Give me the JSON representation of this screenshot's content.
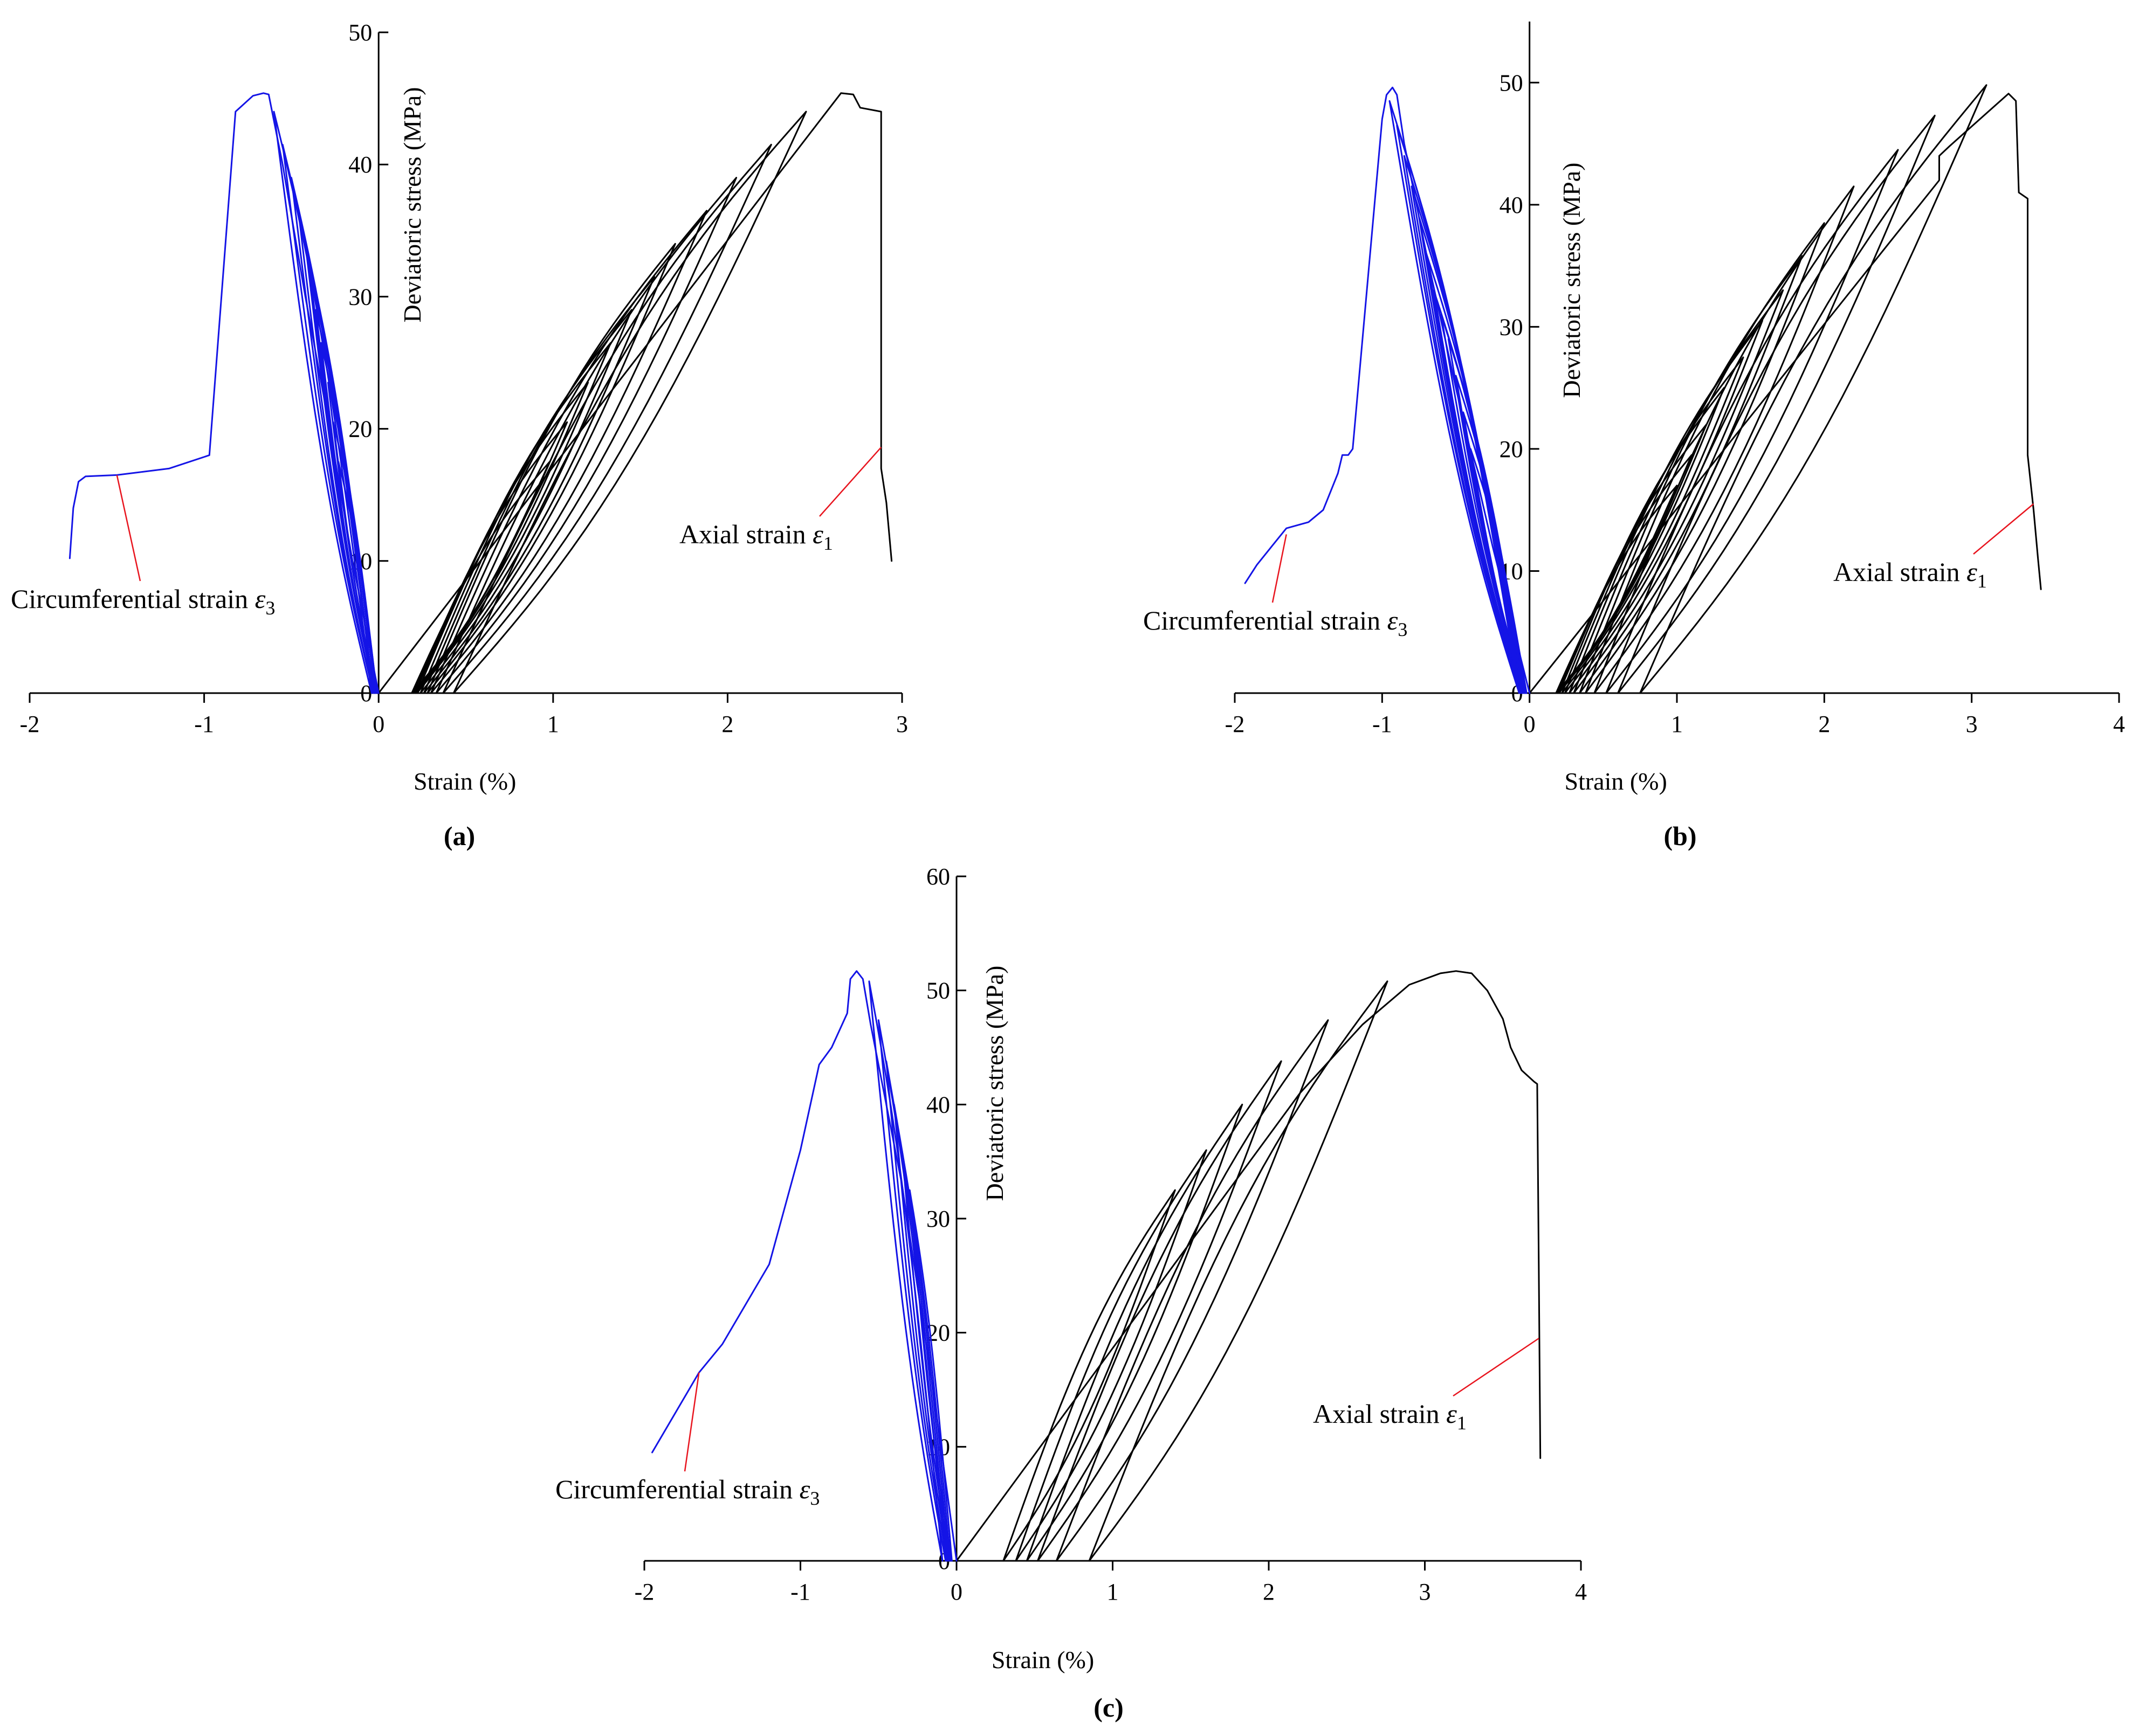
{
  "figure": {
    "panel_labels": [
      "(a)",
      "(b)",
      "(c)"
    ]
  },
  "colors": {
    "axial": "#000000",
    "circumferential": "#1414e6",
    "leader": "#e8141e",
    "axis": "#000000"
  },
  "chart_data": [
    {
      "type": "line",
      "panel": "(a)",
      "xlabel": "Strain (%)",
      "ylabel": "Deviatoric stress (MPa)",
      "xlim": [
        -2,
        3
      ],
      "ylim": [
        0,
        50
      ],
      "xticks": [
        -2,
        -1,
        0,
        1,
        2,
        3
      ],
      "yticks": [
        0,
        10,
        20,
        30,
        40,
        50
      ],
      "annotations": {
        "axial": {
          "text": "Axial strain ",
          "symbol": "ε",
          "sub": "1"
        },
        "circumferential": {
          "text": "Circumferential strain ",
          "symbol": "ε",
          "sub": "3"
        }
      },
      "leader_targets": {
        "axial": [
          2.88,
          18.6
        ],
        "circumferential": [
          -1.5,
          16.5
        ]
      },
      "series": [
        {
          "name": "Axial strain ε1",
          "color_key": "axial",
          "envelope": [
            [
              0,
              0
            ],
            [
              2.65,
              45.4
            ],
            [
              2.72,
              45.3
            ],
            [
              2.76,
              44.3
            ],
            [
              2.88,
              44.0
            ],
            [
              2.88,
              17.0
            ],
            [
              2.91,
              14.4
            ],
            [
              2.94,
              10.0
            ]
          ],
          "loops": [
            {
              "peak": [
                0.98,
                17.5
              ],
              "res": 0.19
            },
            {
              "peak": [
                1.08,
                20.5
              ],
              "res": 0.2
            },
            {
              "peak": [
                1.2,
                23.5
              ],
              "res": 0.21
            },
            {
              "peak": [
                1.33,
                26.5
              ],
              "res": 0.22
            },
            {
              "peak": [
                1.45,
                29.0
              ],
              "res": 0.24
            },
            {
              "peak": [
                1.58,
                31.5
              ],
              "res": 0.26
            },
            {
              "peak": [
                1.7,
                34.0
              ],
              "res": 0.28
            },
            {
              "peak": [
                1.88,
                36.5
              ],
              "res": 0.3
            },
            {
              "peak": [
                2.05,
                39.0
              ],
              "res": 0.33
            },
            {
              "peak": [
                2.25,
                41.5
              ],
              "res": 0.37
            },
            {
              "peak": [
                2.45,
                44.0
              ],
              "res": 0.43
            }
          ]
        },
        {
          "name": "Circumferential strain ε3",
          "color_key": "circumferential",
          "envelope": [
            [
              0,
              0
            ],
            [
              -0.15,
              10.0
            ],
            [
              -0.28,
              20.0
            ],
            [
              -0.42,
              30.0
            ],
            [
              -0.55,
              40.0
            ],
            [
              -0.63,
              45.3
            ],
            [
              -0.66,
              45.4
            ],
            [
              -0.72,
              45.2
            ],
            [
              -0.82,
              44.0
            ],
            [
              -0.97,
              18.0
            ],
            [
              -1.2,
              17.0
            ],
            [
              -1.5,
              16.5
            ],
            [
              -1.68,
              16.4
            ],
            [
              -1.72,
              16.0
            ],
            [
              -1.75,
              14.0
            ],
            [
              -1.77,
              10.2
            ]
          ],
          "loops": [
            {
              "peak": [
                -0.23,
                17.5
              ],
              "res": -0.01
            },
            {
              "peak": [
                -0.26,
                20.5
              ],
              "res": -0.01
            },
            {
              "peak": [
                -0.29,
                23.5
              ],
              "res": -0.01
            },
            {
              "peak": [
                -0.33,
                26.5
              ],
              "res": -0.02
            },
            {
              "peak": [
                -0.36,
                29.0
              ],
              "res": -0.02
            },
            {
              "peak": [
                -0.39,
                31.5
              ],
              "res": -0.02
            },
            {
              "peak": [
                -0.42,
                34.0
              ],
              "res": -0.02
            },
            {
              "peak": [
                -0.46,
                36.5
              ],
              "res": -0.03
            },
            {
              "peak": [
                -0.5,
                39.0
              ],
              "res": -0.03
            },
            {
              "peak": [
                -0.55,
                41.5
              ],
              "res": -0.03
            },
            {
              "peak": [
                -0.6,
                44.0
              ],
              "res": -0.04
            }
          ]
        }
      ]
    },
    {
      "type": "line",
      "panel": "(b)",
      "xlabel": "Strain (%)",
      "ylabel": "Deviatoric stress (MPa)",
      "xlim": [
        -2,
        4
      ],
      "ylim": [
        0,
        55
      ],
      "xticks": [
        -2,
        -1,
        0,
        1,
        2,
        3,
        4
      ],
      "yticks": [
        0,
        10,
        20,
        30,
        40,
        50
      ],
      "annotations": {
        "axial": {
          "text": "Axial strain ",
          "symbol": "ε",
          "sub": "1"
        },
        "circumferential": {
          "text": "Circumferential strain ",
          "symbol": "ε",
          "sub": "3"
        }
      },
      "leader_targets": {
        "axial": [
          3.42,
          15.5
        ],
        "circumferential": [
          -1.65,
          13.0
        ]
      },
      "series": [
        {
          "name": "Axial strain ε1",
          "color_key": "axial",
          "envelope": [
            [
              0,
              0
            ],
            [
              2.78,
              42.0
            ],
            [
              2.78,
              44.0
            ],
            [
              2.85,
              44.8
            ],
            [
              3.25,
              49.1
            ],
            [
              3.3,
              48.5
            ],
            [
              3.32,
              41.0
            ],
            [
              3.38,
              40.5
            ],
            [
              3.38,
              19.5
            ],
            [
              3.42,
              15.0
            ],
            [
              3.45,
              11.0
            ],
            [
              3.47,
              8.5
            ]
          ],
          "loops": [
            {
              "peak": [
                1.0,
                17.0
              ],
              "res": 0.18
            },
            {
              "peak": [
                1.1,
                19.5
              ],
              "res": 0.19
            },
            {
              "peak": [
                1.2,
                22.0
              ],
              "res": 0.2
            },
            {
              "peak": [
                1.32,
                25.0
              ],
              "res": 0.22
            },
            {
              "peak": [
                1.45,
                27.5
              ],
              "res": 0.24
            },
            {
              "peak": [
                1.58,
                30.5
              ],
              "res": 0.27
            },
            {
              "peak": [
                1.72,
                33.0
              ],
              "res": 0.3
            },
            {
              "peak": [
                1.85,
                35.8
              ],
              "res": 0.34
            },
            {
              "peak": [
                2.0,
                38.5
              ],
              "res": 0.38
            },
            {
              "peak": [
                2.2,
                41.5
              ],
              "res": 0.44
            },
            {
              "peak": [
                2.5,
                44.5
              ],
              "res": 0.52
            },
            {
              "peak": [
                2.75,
                47.3
              ],
              "res": 0.6
            },
            {
              "peak": [
                3.1,
                49.8
              ],
              "res": 0.75
            }
          ]
        },
        {
          "name": "Circumferential strain ε3",
          "color_key": "circumferential",
          "envelope": [
            [
              0,
              0
            ],
            [
              -0.25,
              12.0
            ],
            [
              -0.5,
              25.0
            ],
            [
              -0.7,
              36.0
            ],
            [
              -0.85,
              45.0
            ],
            [
              -0.9,
              49.0
            ],
            [
              -0.93,
              49.6
            ],
            [
              -0.97,
              49.0
            ],
            [
              -1.0,
              47.0
            ],
            [
              -1.2,
              20.0
            ],
            [
              -1.23,
              19.5
            ],
            [
              -1.27,
              19.5
            ],
            [
              -1.3,
              18.0
            ],
            [
              -1.4,
              15.0
            ],
            [
              -1.5,
              14.0
            ],
            [
              -1.65,
              13.5
            ],
            [
              -1.75,
              12.0
            ],
            [
              -1.85,
              10.5
            ],
            [
              -1.93,
              9.0
            ]
          ],
          "loops": [
            {
              "peak": [
                -0.4,
                20.0
              ],
              "res": -0.02
            },
            {
              "peak": [
                -0.45,
                23.0
              ],
              "res": -0.02
            },
            {
              "peak": [
                -0.5,
                26.0
              ],
              "res": -0.03
            },
            {
              "peak": [
                -0.55,
                29.0
              ],
              "res": -0.03
            },
            {
              "peak": [
                -0.6,
                31.0
              ],
              "res": -0.03
            },
            {
              "peak": [
                -0.65,
                33.0
              ],
              "res": -0.04
            },
            {
              "peak": [
                -0.7,
                36.0
              ],
              "res": -0.04
            },
            {
              "peak": [
                -0.75,
                39.0
              ],
              "res": -0.05
            },
            {
              "peak": [
                -0.8,
                41.5
              ],
              "res": -0.05
            },
            {
              "peak": [
                -0.85,
                44.0
              ],
              "res": -0.06
            },
            {
              "peak": [
                -0.9,
                46.5
              ],
              "res": -0.06
            },
            {
              "peak": [
                -0.95,
                48.5
              ],
              "res": -0.07
            }
          ]
        }
      ]
    },
    {
      "type": "line",
      "panel": "(c)",
      "xlabel": "Strain (%)",
      "ylabel": "Deviatoric stress (MPa)",
      "xlim": [
        -2,
        4
      ],
      "ylim": [
        0,
        60
      ],
      "xticks": [
        -2,
        -1,
        0,
        1,
        2,
        3,
        4
      ],
      "yticks": [
        0,
        10,
        20,
        30,
        40,
        50,
        60
      ],
      "annotations": {
        "axial": {
          "text": "Axial strain ",
          "symbol": "ε",
          "sub": "1"
        },
        "circumferential": {
          "text": "Circumferential strain ",
          "symbol": "ε",
          "sub": "3"
        }
      },
      "leader_targets": {
        "axial": [
          3.73,
          19.5
        ],
        "circumferential": [
          -1.65,
          16.5
        ]
      },
      "series": [
        {
          "name": "Axial strain ε1",
          "color_key": "axial",
          "envelope": [
            [
              0,
              0
            ],
            [
              2.2,
              41.0
            ],
            [
              2.6,
              47.0
            ],
            [
              2.9,
              50.5
            ],
            [
              3.1,
              51.5
            ],
            [
              3.2,
              51.7
            ],
            [
              3.3,
              51.5
            ],
            [
              3.4,
              50.0
            ],
            [
              3.5,
              47.5
            ],
            [
              3.55,
              45.0
            ],
            [
              3.62,
              43.0
            ],
            [
              3.7,
              42.0
            ],
            [
              3.72,
              41.8
            ],
            [
              3.73,
              26.0
            ],
            [
              3.74,
              9.0
            ]
          ],
          "loops": [
            {
              "peak": [
                1.4,
                32.5
              ],
              "res": 0.3
            },
            {
              "peak": [
                1.6,
                36.0
              ],
              "res": 0.38
            },
            {
              "peak": [
                1.83,
                40.0
              ],
              "res": 0.45
            },
            {
              "peak": [
                2.08,
                43.8
              ],
              "res": 0.52
            },
            {
              "peak": [
                2.38,
                47.4
              ],
              "res": 0.64
            },
            {
              "peak": [
                2.76,
                50.8
              ],
              "res": 0.85
            }
          ]
        },
        {
          "name": "Circumferential strain ε3",
          "color_key": "circumferential",
          "envelope": [
            [
              0,
              0
            ],
            [
              -0.15,
              15.0
            ],
            [
              -0.35,
              33.0
            ],
            [
              -0.55,
              47.0
            ],
            [
              -0.6,
              51.0
            ],
            [
              -0.64,
              51.7
            ],
            [
              -0.68,
              51.0
            ],
            [
              -0.7,
              48.0
            ],
            [
              -0.8,
              45.0
            ],
            [
              -0.88,
              43.5
            ],
            [
              -1.0,
              36.0
            ],
            [
              -1.2,
              26.0
            ],
            [
              -1.5,
              19.0
            ],
            [
              -1.65,
              16.5
            ],
            [
              -1.95,
              9.5
            ]
          ],
          "loops": [
            {
              "peak": [
                -0.3,
                32.5
              ],
              "res": -0.03
            },
            {
              "peak": [
                -0.35,
                36.0
              ],
              "res": -0.04
            },
            {
              "peak": [
                -0.4,
                40.0
              ],
              "res": -0.05
            },
            {
              "peak": [
                -0.45,
                43.8
              ],
              "res": -0.06
            },
            {
              "peak": [
                -0.5,
                47.4
              ],
              "res": -0.07
            },
            {
              "peak": [
                -0.56,
                50.8
              ],
              "res": -0.09
            }
          ]
        }
      ]
    }
  ]
}
